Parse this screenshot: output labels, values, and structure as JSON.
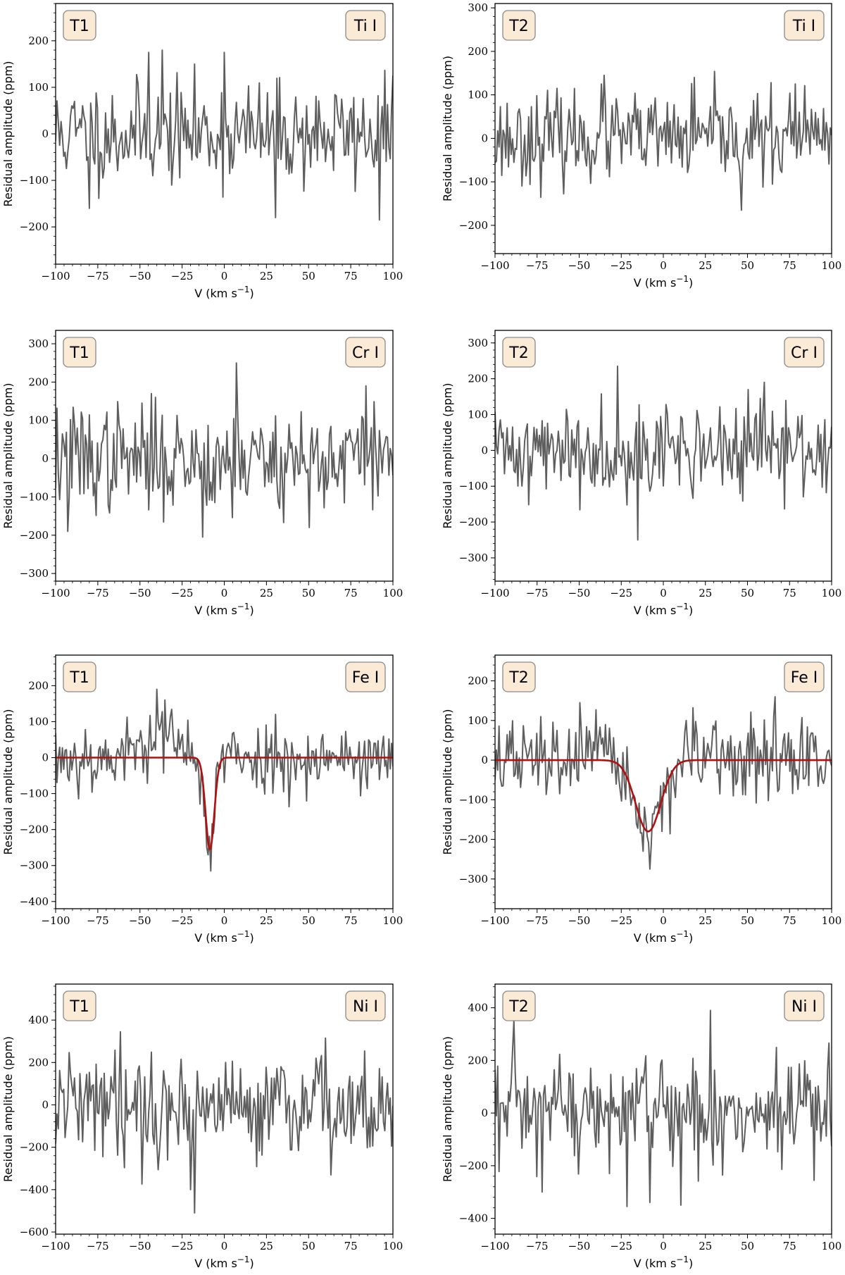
{
  "figure": {
    "colors": {
      "noise": "#5e5e5e",
      "model": "#b01010",
      "badge_fill": "#fbebd6",
      "badge_stroke": "#8a8a8a"
    }
  },
  "chart_data": [
    {
      "type": "line",
      "panel": "T1-Ti",
      "transit_label": "T1",
      "species_label": "Ti I",
      "xlabel": "V (km s",
      "xlabel_exp": "−1",
      "xlabel_tail": ")",
      "ylabel": "Residual amplitude (ppm)",
      "xlim": [
        -100,
        100
      ],
      "ylim": [
        -280,
        280
      ],
      "xticks": [
        -100,
        -75,
        -50,
        -25,
        0,
        25,
        50,
        75,
        100
      ],
      "xtick_labels": [
        "−100",
        "−75",
        "−50",
        "−25",
        "0",
        "25",
        "50",
        "75",
        "100"
      ],
      "yticks": [
        -200,
        -100,
        0,
        100,
        200
      ],
      "ytick_labels": [
        "−200",
        "−100",
        "0",
        "100",
        "200"
      ],
      "noise_sigma": 55,
      "features": [
        [
          -80,
          -160
        ],
        [
          -45,
          175
        ],
        [
          -37,
          180
        ],
        [
          0,
          175
        ],
        [
          30,
          -180
        ],
        [
          92,
          -185
        ]
      ],
      "seed": 11
    },
    {
      "type": "line",
      "panel": "T2-Ti",
      "transit_label": "T2",
      "species_label": "Ti I",
      "xlabel": "V (km s",
      "xlabel_exp": "−1",
      "xlabel_tail": ")",
      "ylabel": "Residual amplitude (ppm)",
      "xlim": [
        -100,
        100
      ],
      "ylim": [
        -265,
        310
      ],
      "xticks": [
        -100,
        -75,
        -50,
        -25,
        0,
        25,
        50,
        75,
        100
      ],
      "xtick_labels": [
        "−100",
        "−75",
        "−50",
        "−25",
        "0",
        "25",
        "50",
        "75",
        "100"
      ],
      "yticks": [
        -200,
        -100,
        0,
        100,
        200,
        300
      ],
      "ytick_labels": [
        "−200",
        "−100",
        "0",
        "100",
        "200",
        "300"
      ],
      "noise_sigma": 50,
      "features": [
        [
          -35,
          145
        ],
        [
          18,
          140
        ],
        [
          46,
          -165
        ],
        [
          78,
          125
        ]
      ],
      "seed": 23
    },
    {
      "type": "line",
      "panel": "T1-Cr",
      "transit_label": "T1",
      "species_label": "Cr I",
      "xlabel": "V (km s",
      "xlabel_exp": "−1",
      "xlabel_tail": ")",
      "ylabel": "Residual amplitude (ppm)",
      "xlim": [
        -100,
        100
      ],
      "ylim": [
        -320,
        335
      ],
      "xticks": [
        -100,
        -75,
        -50,
        -25,
        0,
        25,
        50,
        75,
        100
      ],
      "xtick_labels": [
        "−100",
        "−75",
        "−50",
        "−25",
        "0",
        "25",
        "50",
        "75",
        "100"
      ],
      "yticks": [
        -300,
        -200,
        -100,
        0,
        100,
        200,
        300
      ],
      "ytick_labels": [
        "−300",
        "−200",
        "−100",
        "0",
        "100",
        "200",
        "300"
      ],
      "noise_sigma": 70,
      "features": [
        [
          -93,
          -190
        ],
        [
          -13,
          -205
        ],
        [
          7,
          250
        ],
        [
          50,
          -180
        ],
        [
          84,
          190
        ]
      ],
      "seed": 37
    },
    {
      "type": "line",
      "panel": "T2-Cr",
      "transit_label": "T2",
      "species_label": "Cr I",
      "xlabel": "V (km s",
      "xlabel_exp": "−1",
      "xlabel_tail": ")",
      "ylabel": "Residual amplitude (ppm)",
      "xlim": [
        -100,
        100
      ],
      "ylim": [
        -365,
        335
      ],
      "xticks": [
        -100,
        -75,
        -50,
        -25,
        0,
        25,
        50,
        75,
        100
      ],
      "xtick_labels": [
        "−100",
        "−75",
        "−50",
        "−25",
        "0",
        "25",
        "50",
        "75",
        "100"
      ],
      "yticks": [
        -300,
        -200,
        -100,
        0,
        100,
        200,
        300
      ],
      "ytick_labels": [
        "−300",
        "−200",
        "−100",
        "0",
        "100",
        "200",
        "300"
      ],
      "noise_sigma": 65,
      "features": [
        [
          -27,
          235
        ],
        [
          -15,
          -250
        ],
        [
          60,
          190
        ]
      ],
      "seed": 41
    },
    {
      "type": "line",
      "panel": "T1-Fe",
      "transit_label": "T1",
      "species_label": "Fe I",
      "xlabel": "V (km s",
      "xlabel_exp": "−1",
      "xlabel_tail": ")",
      "ylabel": "Residual amplitude (ppm)",
      "xlim": [
        -100,
        100
      ],
      "ylim": [
        -420,
        285
      ],
      "xticks": [
        -100,
        -75,
        -50,
        -25,
        0,
        25,
        50,
        75,
        100
      ],
      "xtick_labels": [
        "−100",
        "−75",
        "−50",
        "−25",
        "0",
        "25",
        "50",
        "75",
        "100"
      ],
      "yticks": [
        -400,
        -300,
        -200,
        -100,
        0,
        100,
        200
      ],
      "ytick_labels": [
        "−400",
        "−300",
        "−200",
        "−100",
        "0",
        "100",
        "200"
      ],
      "noise_sigma": 48,
      "features": [
        [
          -40,
          190
        ],
        [
          -35,
          160
        ],
        [
          -8,
          -315
        ],
        [
          -10,
          -270
        ]
      ],
      "bump": {
        "center": -40,
        "width": 12,
        "amplitude": 70
      },
      "model": {
        "center": -8.5,
        "sigma": 2.6,
        "depth": -255
      },
      "seed": 53
    },
    {
      "type": "line",
      "panel": "T2-Fe",
      "transit_label": "T2",
      "species_label": "Fe I",
      "xlabel": "V (km s",
      "xlabel_exp": "−1",
      "xlabel_tail": ")",
      "ylabel": "Residual amplitude (ppm)",
      "xlim": [
        -100,
        100
      ],
      "ylim": [
        -375,
        265
      ],
      "xticks": [
        -100,
        -75,
        -50,
        -25,
        0,
        25,
        50,
        75,
        100
      ],
      "xtick_labels": [
        "−100",
        "−75",
        "−50",
        "−25",
        "0",
        "25",
        "50",
        "75",
        "100"
      ],
      "yticks": [
        -300,
        -200,
        -100,
        0,
        100,
        200
      ],
      "ytick_labels": [
        "−300",
        "−200",
        "−100",
        "0",
        "100",
        "200"
      ],
      "noise_sigma": 50,
      "features": [
        [
          -50,
          145
        ],
        [
          -8,
          -275
        ],
        [
          -12,
          -230
        ],
        [
          66,
          160
        ]
      ],
      "model": {
        "center": -9,
        "sigma": 7.5,
        "depth": -180
      },
      "seed": 67
    },
    {
      "type": "line",
      "panel": "T1-Ni",
      "transit_label": "T1",
      "species_label": "Ni I",
      "xlabel": "V (km s",
      "xlabel_exp": "−1",
      "xlabel_tail": ")",
      "ylabel": "Residual amplitude (ppm)",
      "xlim": [
        -100,
        100
      ],
      "ylim": [
        -610,
        570
      ],
      "xticks": [
        -100,
        -75,
        -50,
        -25,
        0,
        25,
        50,
        75,
        100
      ],
      "xtick_labels": [
        "−100",
        "−75",
        "−50",
        "−25",
        "0",
        "25",
        "50",
        "75",
        "100"
      ],
      "yticks": [
        -600,
        -400,
        -200,
        0,
        200,
        400
      ],
      "ytick_labels": [
        "−600",
        "−400",
        "−200",
        "0",
        "200",
        "400"
      ],
      "noise_sigma": 120,
      "features": [
        [
          -62,
          345
        ],
        [
          -18,
          -510
        ],
        [
          -20,
          -400
        ],
        [
          63,
          -330
        ],
        [
          60,
          315
        ]
      ],
      "seed": 79
    },
    {
      "type": "line",
      "panel": "T2-Ni",
      "transit_label": "T2",
      "species_label": "Ni I",
      "xlabel": "V (km s",
      "xlabel_exp": "−1",
      "xlabel_tail": ")",
      "ylabel": "Residual amplitude (ppm)",
      "xlim": [
        -100,
        100
      ],
      "ylim": [
        -460,
        490
      ],
      "xticks": [
        -100,
        -75,
        -50,
        -25,
        0,
        25,
        50,
        75,
        100
      ],
      "xtick_labels": [
        "−100",
        "−75",
        "−50",
        "−25",
        "0",
        "25",
        "50",
        "75",
        "100"
      ],
      "yticks": [
        -400,
        -200,
        0,
        200,
        400
      ],
      "ytick_labels": [
        "−400",
        "−200",
        "0",
        "200",
        "400"
      ],
      "noise_sigma": 115,
      "features": [
        [
          -22,
          -355
        ],
        [
          10,
          -350
        ],
        [
          28,
          390
        ],
        [
          -72,
          -300
        ]
      ],
      "seed": 97
    }
  ]
}
